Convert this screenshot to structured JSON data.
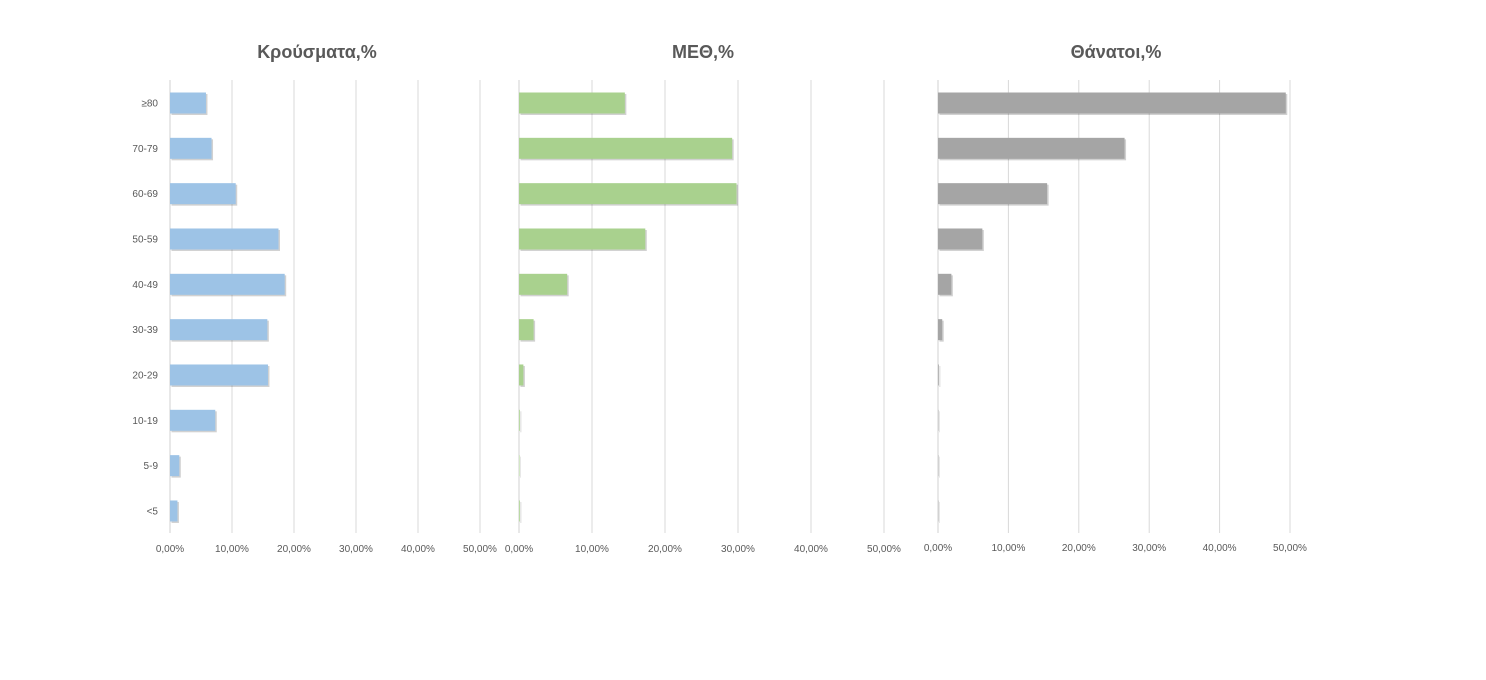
{
  "chart_data": [
    {
      "type": "bar",
      "orientation": "horizontal",
      "title": "Κρούσματα,%",
      "categories": [
        "≥80",
        "70-79",
        "60-69",
        "50-59",
        "40-49",
        "30-39",
        "20-29",
        "10-19",
        "5-9",
        "<5"
      ],
      "values": [
        5.8,
        6.7,
        10.6,
        17.5,
        18.5,
        15.7,
        15.8,
        7.3,
        1.5,
        1.2
      ],
      "xlim": [
        0,
        50
      ],
      "xticks": [
        0,
        10,
        20,
        30,
        40,
        50
      ],
      "tick_labels": [
        "0,00%",
        "10,00%",
        "20,00%",
        "30,00%",
        "40,00%",
        "50,00%"
      ],
      "grid": "vertical",
      "color": "#9DC3E6"
    },
    {
      "type": "bar",
      "orientation": "horizontal",
      "title": "ΜΕΘ,%",
      "categories": [
        "≥80",
        "70-79",
        "60-69",
        "50-59",
        "40-49",
        "30-39",
        "20-29",
        "10-19",
        "5-9",
        "<5"
      ],
      "values": [
        14.5,
        29.2,
        29.8,
        17.3,
        6.6,
        2.0,
        0.6,
        0.1,
        0.0,
        0.1
      ],
      "xlim": [
        0,
        50
      ],
      "xticks": [
        0,
        10,
        20,
        30,
        40,
        50
      ],
      "tick_labels": [
        "0,00%",
        "10,00%",
        "20,00%",
        "30,00%",
        "40,00%",
        "50,00%"
      ],
      "grid": "vertical",
      "color": "#A9D18E"
    },
    {
      "type": "bar",
      "orientation": "horizontal",
      "title": "Θάνατοι,%",
      "categories": [
        "≥80",
        "70-79",
        "60-69",
        "50-59",
        "40-49",
        "30-39",
        "20-29",
        "10-19",
        "5-9",
        "<5"
      ],
      "values": [
        49.4,
        26.5,
        15.5,
        6.3,
        1.9,
        0.6,
        0.1,
        0.0,
        0.0,
        0.0
      ],
      "xlim": [
        0,
        50
      ],
      "xticks": [
        0,
        10,
        20,
        30,
        40,
        50
      ],
      "tick_labels": [
        "0,00%",
        "10,00%",
        "20,00%",
        "30,00%",
        "40,00%",
        "50,00%"
      ],
      "grid": "vertical",
      "color": "#A5A5A5"
    }
  ]
}
